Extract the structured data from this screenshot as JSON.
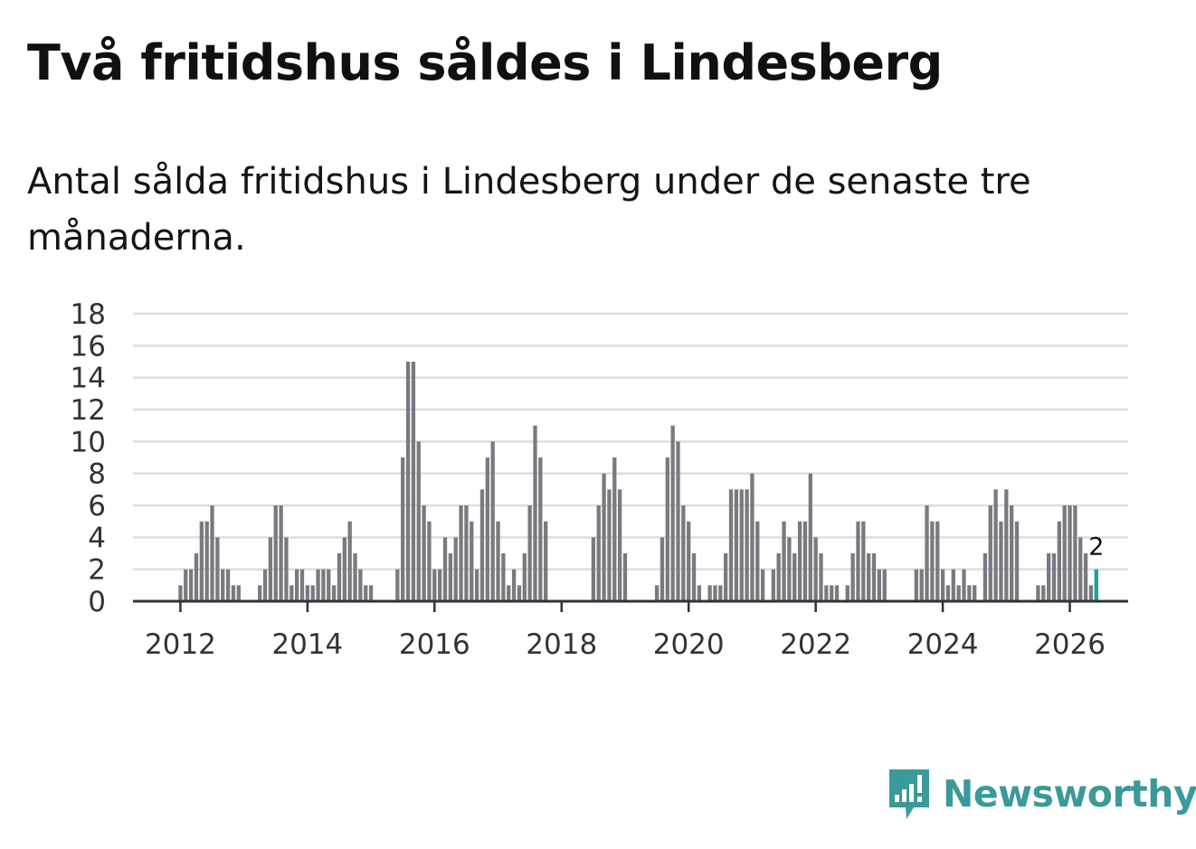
{
  "header": {
    "title": "Två fritidshus såldes i Lindesberg",
    "subtitle": "Antal sålda fritidshus i Lindesberg under de senaste tre månaderna."
  },
  "brand": {
    "name": "Newsworthy",
    "logo_icon": "newsworthy-logo-icon"
  },
  "colors": {
    "bar": "#7a7980",
    "highlight": "#19a392",
    "grid": "#dedede",
    "axis": "#333333",
    "brand": "#3a9a9a"
  },
  "chart_data": {
    "type": "bar",
    "title": "Två fritidshus såldes i Lindesberg",
    "subtitle": "Antal sålda fritidshus i Lindesberg under de senaste tre månaderna.",
    "xlabel": "",
    "ylabel": "",
    "ylim": [
      0,
      18
    ],
    "yticks": [
      0,
      2,
      4,
      6,
      8,
      10,
      12,
      14,
      16,
      18
    ],
    "xticks": [
      "2012",
      "2014",
      "2016",
      "2018",
      "2020",
      "2022",
      "2024",
      "2026"
    ],
    "start": "2011-09",
    "grid": true,
    "highlight_label": "2",
    "values": [
      0,
      0,
      0,
      0,
      1,
      2,
      2,
      3,
      5,
      5,
      6,
      4,
      2,
      2,
      1,
      1,
      0,
      0,
      0,
      1,
      2,
      4,
      6,
      6,
      4,
      1,
      2,
      2,
      1,
      1,
      2,
      2,
      2,
      1,
      3,
      4,
      5,
      3,
      2,
      1,
      1,
      0,
      0,
      0,
      0,
      2,
      9,
      15,
      15,
      10,
      6,
      5,
      2,
      2,
      4,
      3,
      4,
      6,
      6,
      5,
      2,
      7,
      9,
      10,
      5,
      3,
      1,
      2,
      1,
      3,
      6,
      11,
      9,
      5,
      0,
      0,
      0,
      0,
      0,
      0,
      0,
      0,
      4,
      6,
      8,
      7,
      9,
      7,
      3,
      0,
      0,
      0,
      0,
      0,
      1,
      4,
      9,
      11,
      10,
      6,
      5,
      3,
      1,
      0,
      1,
      1,
      1,
      3,
      7,
      7,
      7,
      7,
      8,
      5,
      2,
      0,
      2,
      3,
      5,
      4,
      3,
      5,
      5,
      8,
      4,
      3,
      1,
      1,
      1,
      0,
      1,
      3,
      5,
      5,
      3,
      3,
      2,
      2,
      0,
      0,
      0,
      0,
      0,
      2,
      2,
      6,
      5,
      5,
      2,
      1,
      2,
      1,
      2,
      1,
      1,
      0,
      3,
      6,
      7,
      5,
      7,
      6,
      5,
      0,
      0,
      0,
      1,
      1,
      3,
      3,
      5,
      6,
      6,
      6,
      4,
      3,
      1,
      2
    ]
  }
}
